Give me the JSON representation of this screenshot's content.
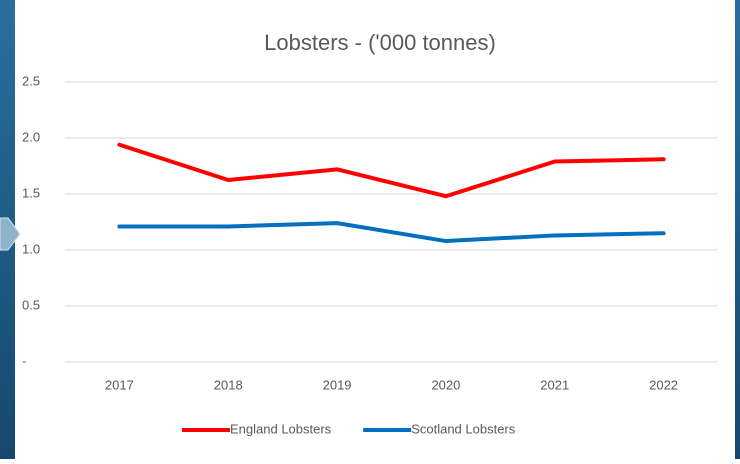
{
  "chart_data": {
    "type": "line",
    "title": "Lobsters - ('000 tonnes)",
    "categories": [
      "2017",
      "2018",
      "2019",
      "2020",
      "2021",
      "2022"
    ],
    "series": [
      {
        "name": "England Lobsters",
        "color": "#ff0000",
        "values": [
          1.94,
          1.625,
          1.72,
          1.48,
          1.79,
          1.81
        ]
      },
      {
        "name": "Scotland Lobsters",
        "color": "#0070c0",
        "values": [
          1.21,
          1.21,
          1.24,
          1.08,
          1.13,
          1.15
        ]
      }
    ],
    "ylim": [
      0,
      2.5
    ],
    "yticks": [
      {
        "value": 0,
        "label": "-"
      },
      0.5,
      {
        "value": 1,
        "label": "1.0"
      },
      1.5,
      {
        "value": 2,
        "label": "2.0"
      },
      2.5
    ],
    "grid": true,
    "legend": "bottom"
  }
}
